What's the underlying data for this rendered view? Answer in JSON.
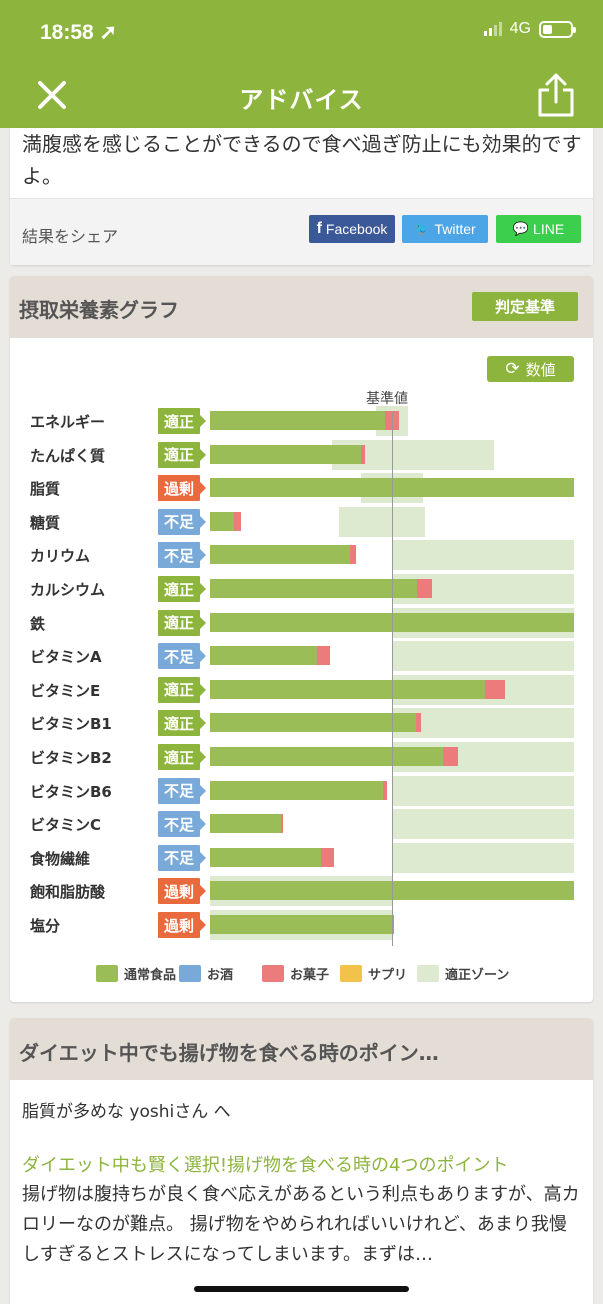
{
  "status_bar": {
    "time": "18:58 ➚",
    "network": "4G"
  },
  "header": {
    "title": "アドバイス"
  },
  "advice": {
    "text": "満腹感を感じることができるので食べ過ぎ防止にも効果的ですよ。",
    "share_label": "結果をシェア",
    "share_buttons": {
      "facebook": "Facebook",
      "twitter": "Twitter",
      "line": "LINE"
    }
  },
  "nutrition": {
    "title": "摂取栄養素グラフ",
    "criteria_label": "判定基準",
    "values_label": "数値",
    "baseline_label": "基準値"
  },
  "chart_data": {
    "type": "bar",
    "orientation": "horizontal",
    "categories": [
      "エネルギー",
      "たんぱく質",
      "脂質",
      "糖質",
      "カリウム",
      "カルシウム",
      "鉄",
      "ビタミンA",
      "ビタミンE",
      "ビタミンB1",
      "ビタミンB2",
      "ビタミンB6",
      "ビタミンC",
      "食物繊維",
      "飽和脂肪酸",
      "塩分"
    ],
    "statuses": [
      "適正",
      "適正",
      "過剰",
      "不足",
      "不足",
      "適正",
      "適正",
      "不足",
      "適正",
      "適正",
      "適正",
      "不足",
      "不足",
      "不足",
      "過剰",
      "過剰"
    ],
    "status_colors": {
      "適正": "#8db43d",
      "過剰": "#e96a3d",
      "不足": "#78a9d8"
    },
    "baseline": 100,
    "xlim": [
      0,
      200
    ],
    "series": [
      {
        "name": "通常食品",
        "color": "#9bbd58",
        "values": [
          96,
          83,
          200,
          13,
          77,
          114,
          200,
          59,
          151,
          113,
          128,
          95,
          39,
          61,
          200,
          100
        ]
      },
      {
        "name": "お酒",
        "color": "#78a9d8",
        "values": [
          0,
          0,
          0,
          0,
          0,
          0,
          0,
          0,
          0,
          0,
          0,
          0,
          0,
          0,
          0,
          0
        ]
      },
      {
        "name": "お菓子",
        "color": "#ec7b7b",
        "values": [
          8,
          2,
          0,
          4,
          3,
          8,
          0,
          7,
          11,
          3,
          8,
          2,
          1,
          7,
          0,
          1
        ]
      },
      {
        "name": "サプリ",
        "color": "#f3c24a",
        "values": [
          0,
          0,
          0,
          0,
          0,
          0,
          0,
          0,
          0,
          0,
          0,
          0,
          0,
          0,
          0,
          0
        ]
      }
    ],
    "zones": {
      "name": "適正ゾーン",
      "color": "#deead0",
      "ranges": [
        [
          91,
          109
        ],
        [
          67,
          156
        ],
        [
          83,
          117
        ],
        [
          71,
          118
        ],
        [
          100,
          200
        ],
        [
          100,
          200
        ],
        [
          100,
          200
        ],
        [
          100,
          200
        ],
        [
          100,
          200
        ],
        [
          100,
          200
        ],
        [
          100,
          200
        ],
        [
          100,
          200
        ],
        [
          100,
          200
        ],
        [
          100,
          200
        ],
        [
          0,
          100
        ],
        [
          0,
          100
        ]
      ]
    }
  },
  "article": {
    "title": "ダイエット中でも揚げ物を食べる時のポイン…",
    "greeting": "脂質が多めな yoshiさん へ",
    "link": "ダイエット中も賢く選択!揚げ物を食べる時の4つのポイント",
    "body": "揚げ物は腹持ちが良く食べ応えがあるという利点もありますが、高カロリーなのが難点。 揚げ物をやめられればいいけれど、あまり我慢しすぎるとストレスになってしまいます。まずは…"
  }
}
